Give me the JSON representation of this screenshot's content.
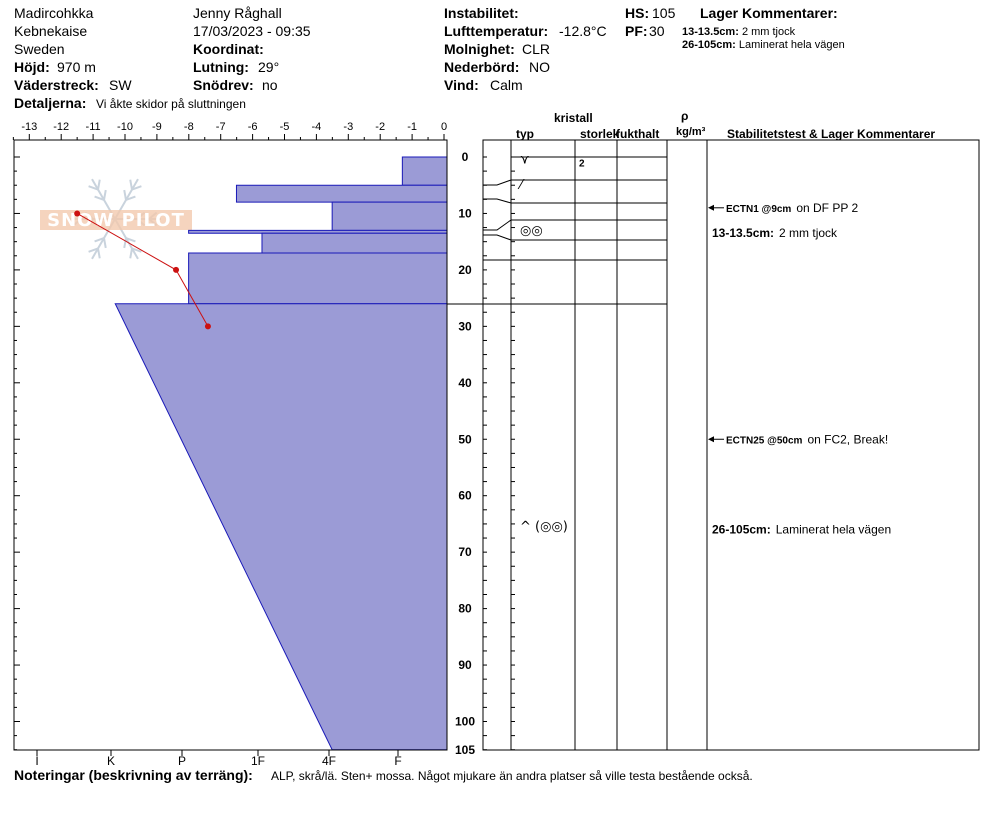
{
  "header": {
    "location": "Madircohkka",
    "range": "Kebnekaise",
    "country": "Sweden",
    "hojd_label": "Höjd:",
    "hojd_value": "970 m",
    "vaderstreck_label": "Väderstreck:",
    "vaderstreck_value": "SW",
    "observer": "Jenny Råghall",
    "datetime": "17/03/2023 - 09:35",
    "koordinat_label": "Koordinat:",
    "lutning_label": "Lutning:",
    "lutning_value": "29°",
    "snodrev_label": "Snödrev:",
    "snodrev_value": "no",
    "instabilitet_label": "Instabilitet:",
    "lufttemp_label": "Lufttemperatur:",
    "lufttemp_value": "-12.8°C",
    "molnighet_label": "Molnighet:",
    "molnighet_value": "CLR",
    "nederbord_label": "Nederbörd:",
    "nederbord_value": "NO",
    "vind_label": "Vind:",
    "vind_value": "Calm",
    "hs_label": "HS:",
    "hs_value": "105",
    "pf_label": "PF:",
    "pf_value": "30",
    "lager_title": "Lager Kommentarer:",
    "lager_comments": [
      {
        "range": "13-13.5cm:",
        "text": "2 mm tjock"
      },
      {
        "range": "26-105cm:",
        "text": "Laminerat hela vägen"
      }
    ],
    "detaljerna_label": "Detaljerna:",
    "detaljerna_value": "Vi åkte skidor på sluttningen"
  },
  "logo_text": "SNOW PILOT",
  "columns": {
    "kristall": "kristall",
    "typ": "typ",
    "storlek": "storlek",
    "fukthalt": "fukthalt",
    "rho": "ρ",
    "density_unit": "kg/m³",
    "stab_title": "Stabilitetstest & Lager Kommentarer"
  },
  "chart_data": {
    "type": "bar",
    "description_axis": "snow depth from surface (cm)",
    "temp_axis": {
      "ticks": [
        -13,
        -12,
        -11,
        -10,
        -9,
        -8,
        -7,
        -6,
        -5,
        -4,
        -3,
        -2,
        -1,
        0
      ],
      "range": [
        -13.5,
        0
      ]
    },
    "depth_axis": {
      "ticks": [
        0,
        10,
        20,
        30,
        40,
        50,
        60,
        70,
        80,
        90,
        100,
        105
      ],
      "range": [
        0,
        105
      ]
    },
    "hardness_axis": {
      "labels": [
        "I",
        "K",
        "P",
        "1F",
        "4F",
        "F"
      ]
    },
    "layers": [
      {
        "top": 0,
        "bottom": 5,
        "hardness_top": 1.4,
        "hardness_bottom": 1.4
      },
      {
        "top": 5,
        "bottom": 8,
        "hardness_top": 6.6,
        "hardness_bottom": 6.6
      },
      {
        "top": 8,
        "bottom": 13,
        "hardness_top": 3.6,
        "hardness_bottom": 3.6
      },
      {
        "top": 13,
        "bottom": 13.5,
        "hardness_top": 8.1,
        "hardness_bottom": 8.1
      },
      {
        "top": 13.5,
        "bottom": 17,
        "hardness_top": 5.8,
        "hardness_bottom": 5.8
      },
      {
        "top": 17,
        "bottom": 26,
        "hardness_top": 8.1,
        "hardness_bottom": 8.1
      },
      {
        "top": 26,
        "bottom": 105,
        "hardness_top": 10.4,
        "hardness_bottom": 3.6
      }
    ],
    "temperature_profile": [
      {
        "depth": 10,
        "temp": -11.5
      },
      {
        "depth": 20,
        "temp": -8.4
      },
      {
        "depth": 30,
        "temp": -7.4
      }
    ],
    "crystal_rows": [
      {
        "depth": 1.5,
        "typ": "⋎",
        "storlek": "2"
      },
      {
        "depth": 5,
        "typ": "⁄",
        "storlek": ""
      },
      {
        "depth": 13,
        "typ": "◎◎",
        "storlek": ""
      },
      {
        "depth": 65.5,
        "typ": "^ (◎◎)",
        "storlek": ""
      }
    ],
    "stability_tests": [
      {
        "depth": 9,
        "code": "ECTN1 @9cm",
        "text": "on DF PP 2",
        "arrow": true
      },
      {
        "depth": 13.5,
        "code": "13-13.5cm:",
        "text": "2 mm tjock",
        "arrow": false
      },
      {
        "depth": 50,
        "code": "ECTN25 @50cm",
        "text": "on FC2, Break!",
        "arrow": true
      },
      {
        "depth": 66,
        "code": "26-105cm:",
        "text": "Laminerat hela vägen",
        "arrow": false
      }
    ],
    "layer_boundaries": [
      5,
      8,
      13,
      13.5,
      17,
      26
    ],
    "colors": {
      "fill": "#9b9bd6",
      "stroke": "#1a1ab8",
      "temp_line": "#cc1111"
    }
  },
  "notes": {
    "label": "Noteringar (beskrivning av terräng):",
    "value": "ALP, skrå/lä. Sten+ mossa. Något mjukare än andra platser så ville testa bestående också."
  }
}
